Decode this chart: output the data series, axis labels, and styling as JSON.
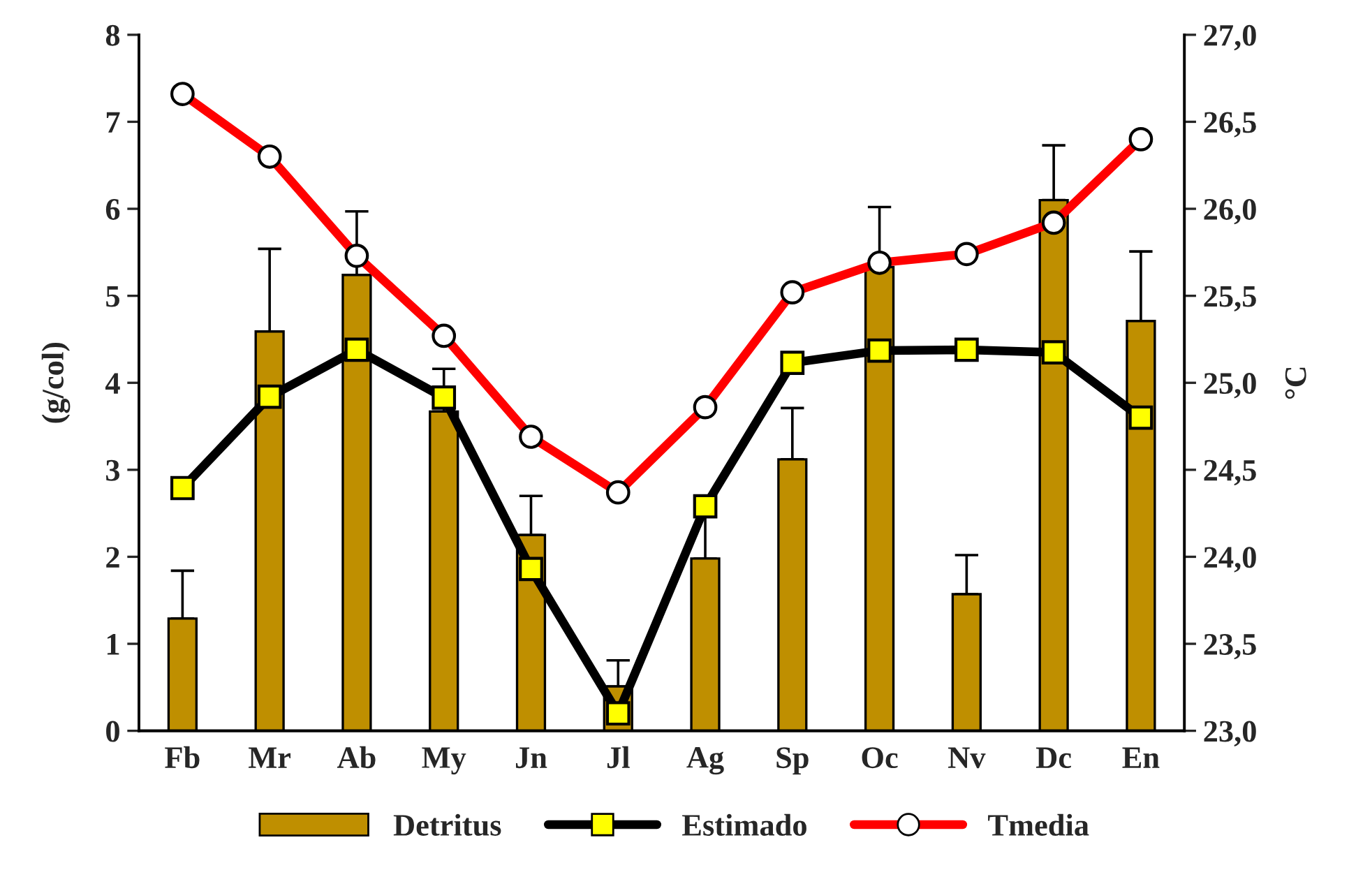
{
  "chart_data": {
    "type": "bar",
    "ylabel": "(g/col)",
    "y2label": "°C",
    "categories": [
      "Fb",
      "Mr",
      "Ab",
      "My",
      "Jn",
      "Jl",
      "Ag",
      "Sp",
      "Oc",
      "Nv",
      "Dc",
      "En"
    ],
    "series": [
      {
        "name": "Detritus",
        "color": "#bf8f00",
        "values": [
          1.29,
          4.59,
          5.24,
          3.67,
          2.25,
          0.51,
          1.98,
          3.12,
          5.33,
          1.57,
          6.1,
          4.71
        ],
        "errors": [
          [
            1.29,
            1.84
          ],
          [
            4.59,
            5.54
          ],
          [
            5.24,
            5.97
          ],
          [
            3.67,
            4.16
          ],
          [
            2.25,
            2.7
          ],
          [
            0.51,
            0.81
          ],
          [
            1.98,
            2.5
          ],
          [
            3.12,
            3.71
          ],
          [
            5.33,
            6.02
          ],
          [
            1.57,
            2.02
          ],
          [
            6.1,
            6.73
          ],
          [
            4.71,
            5.51
          ]
        ]
      },
      {
        "name": "Estimado",
        "type": "line",
        "color": "#000000",
        "marker": "square",
        "values": [
          2.79,
          3.84,
          4.38,
          3.83,
          1.86,
          0.2,
          2.58,
          4.23,
          4.37,
          4.38,
          4.35,
          3.6
        ]
      },
      {
        "name": "Tmedia",
        "type": "line",
        "color": "#ff0000",
        "marker": "circle",
        "axis": "y2",
        "values": [
          26.66,
          26.3,
          25.73,
          25.27,
          24.69,
          24.37,
          24.86,
          25.52,
          25.69,
          25.74,
          25.92,
          26.4
        ]
      }
    ],
    "ylim": [
      0,
      8
    ],
    "yticks": [
      0,
      1,
      2,
      3,
      4,
      5,
      6,
      7,
      8
    ],
    "y2lim": [
      23,
      27
    ],
    "y2ticks": [
      {
        "value": 23,
        "label": "23,0"
      },
      {
        "value": 23.5,
        "label": "23,5"
      },
      {
        "value": 24,
        "label": "24,0"
      },
      {
        "value": 24.5,
        "label": "24,5"
      },
      {
        "value": 25,
        "label": "25,0"
      },
      {
        "value": 25.5,
        "label": "25,5"
      },
      {
        "value": 26,
        "label": "26,0"
      },
      {
        "value": 26.5,
        "label": "26,5"
      },
      {
        "value": 27,
        "label": "27,0"
      }
    ],
    "grid": false,
    "legend": "bottom"
  }
}
